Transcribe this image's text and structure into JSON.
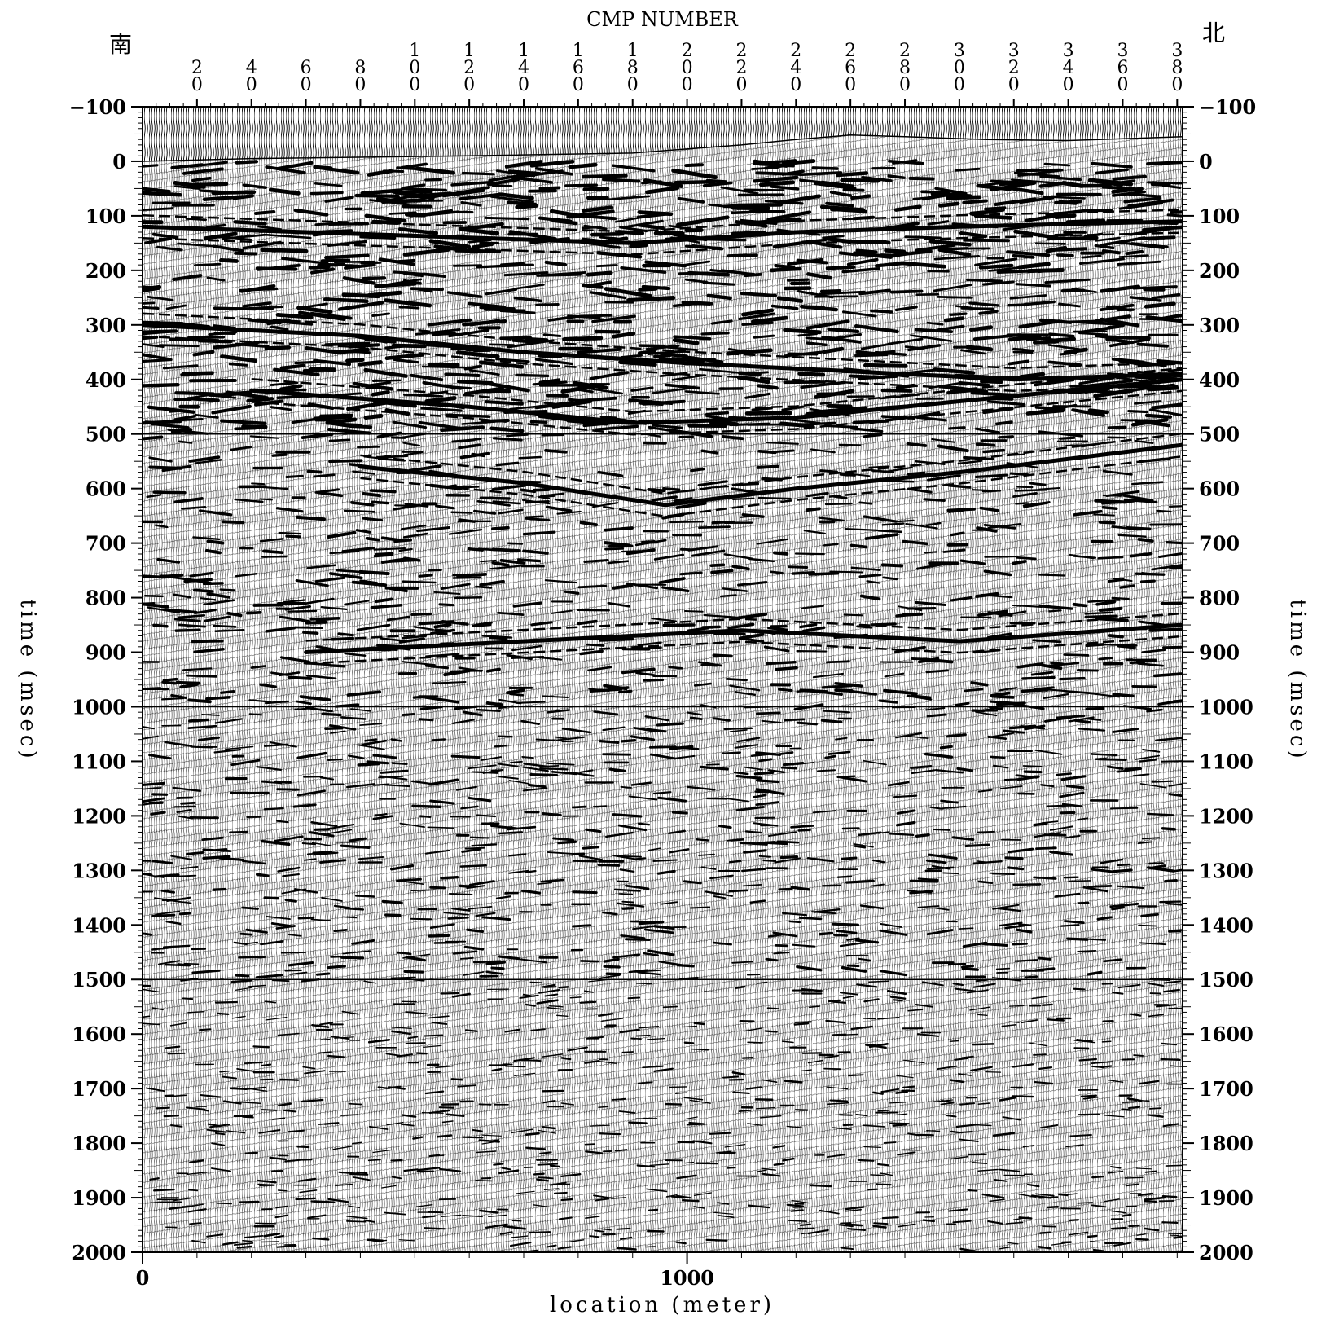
{
  "chart_data": {
    "type": "seismic-section",
    "title": "CMP NUMBER",
    "direction_left": "南",
    "direction_right": "北",
    "xlabel": "location (meter)",
    "ylabel": "time (msec)",
    "y_ticks": [
      -100,
      0,
      100,
      200,
      300,
      400,
      500,
      600,
      700,
      800,
      900,
      1000,
      1100,
      1200,
      1300,
      1400,
      1500,
      1600,
      1700,
      1800,
      1900,
      2000
    ],
    "y_tick_labels": [
      "−100",
      "0",
      "100",
      "200",
      "300",
      "400",
      "500",
      "600",
      "700",
      "800",
      "900",
      "1000",
      "1100",
      "1200",
      "1300",
      "1400",
      "1500",
      "1600",
      "1700",
      "1800",
      "1900",
      "2000"
    ],
    "ylim": [
      -100,
      2000
    ],
    "y_reversed": true,
    "horizontal_lines_at": [
      500,
      1000,
      1500
    ],
    "x_location_ticks": [
      0,
      1000
    ],
    "x_location_tick_labels": [
      "0",
      "1000"
    ],
    "xlim_meters": [
      0,
      1910
    ],
    "cmp_ticks": [
      20,
      40,
      60,
      80,
      100,
      120,
      140,
      160,
      180,
      200,
      220,
      240,
      260,
      280,
      300,
      320,
      340,
      360,
      380
    ],
    "cmp_tick_labels": [
      "20",
      "40",
      "60",
      "80",
      "100",
      "120",
      "140",
      "160",
      "180",
      "200",
      "220",
      "240",
      "260",
      "280",
      "300",
      "320",
      "340",
      "360",
      "380"
    ],
    "cmp_spacing_m": 5,
    "ground_surface_ms": [
      [
        0,
        0
      ],
      [
        200,
        -5
      ],
      [
        600,
        -10
      ],
      [
        900,
        -15
      ],
      [
        1100,
        -30
      ],
      [
        1200,
        -40
      ],
      [
        1300,
        -48
      ],
      [
        1400,
        -45
      ],
      [
        1550,
        -40
      ],
      [
        1700,
        -38
      ],
      [
        1910,
        -45
      ]
    ],
    "strong_reflectors": [
      {
        "points": [
          [
            0,
            120
          ],
          [
            300,
            130
          ],
          [
            600,
            140
          ],
          [
            900,
            150
          ],
          [
            1200,
            130
          ],
          [
            1500,
            120
          ],
          [
            1910,
            110
          ]
        ]
      },
      {
        "points": [
          [
            0,
            300
          ],
          [
            400,
            320
          ],
          [
            700,
            350
          ],
          [
            1000,
            370
          ],
          [
            1300,
            385
          ],
          [
            1600,
            400
          ],
          [
            1910,
            390
          ]
        ]
      },
      {
        "points": [
          [
            200,
            420
          ],
          [
            600,
            450
          ],
          [
            900,
            480
          ],
          [
            1200,
            470
          ],
          [
            1500,
            440
          ],
          [
            1910,
            400
          ]
        ]
      },
      {
        "points": [
          [
            400,
            560
          ],
          [
            700,
            590
          ],
          [
            960,
            630
          ],
          [
            1200,
            600
          ],
          [
            1500,
            570
          ],
          [
            1910,
            520
          ]
        ]
      },
      {
        "points": [
          [
            300,
            900
          ],
          [
            700,
            880
          ],
          [
            1100,
            860
          ],
          [
            1500,
            880
          ],
          [
            1910,
            850
          ]
        ]
      }
    ]
  }
}
